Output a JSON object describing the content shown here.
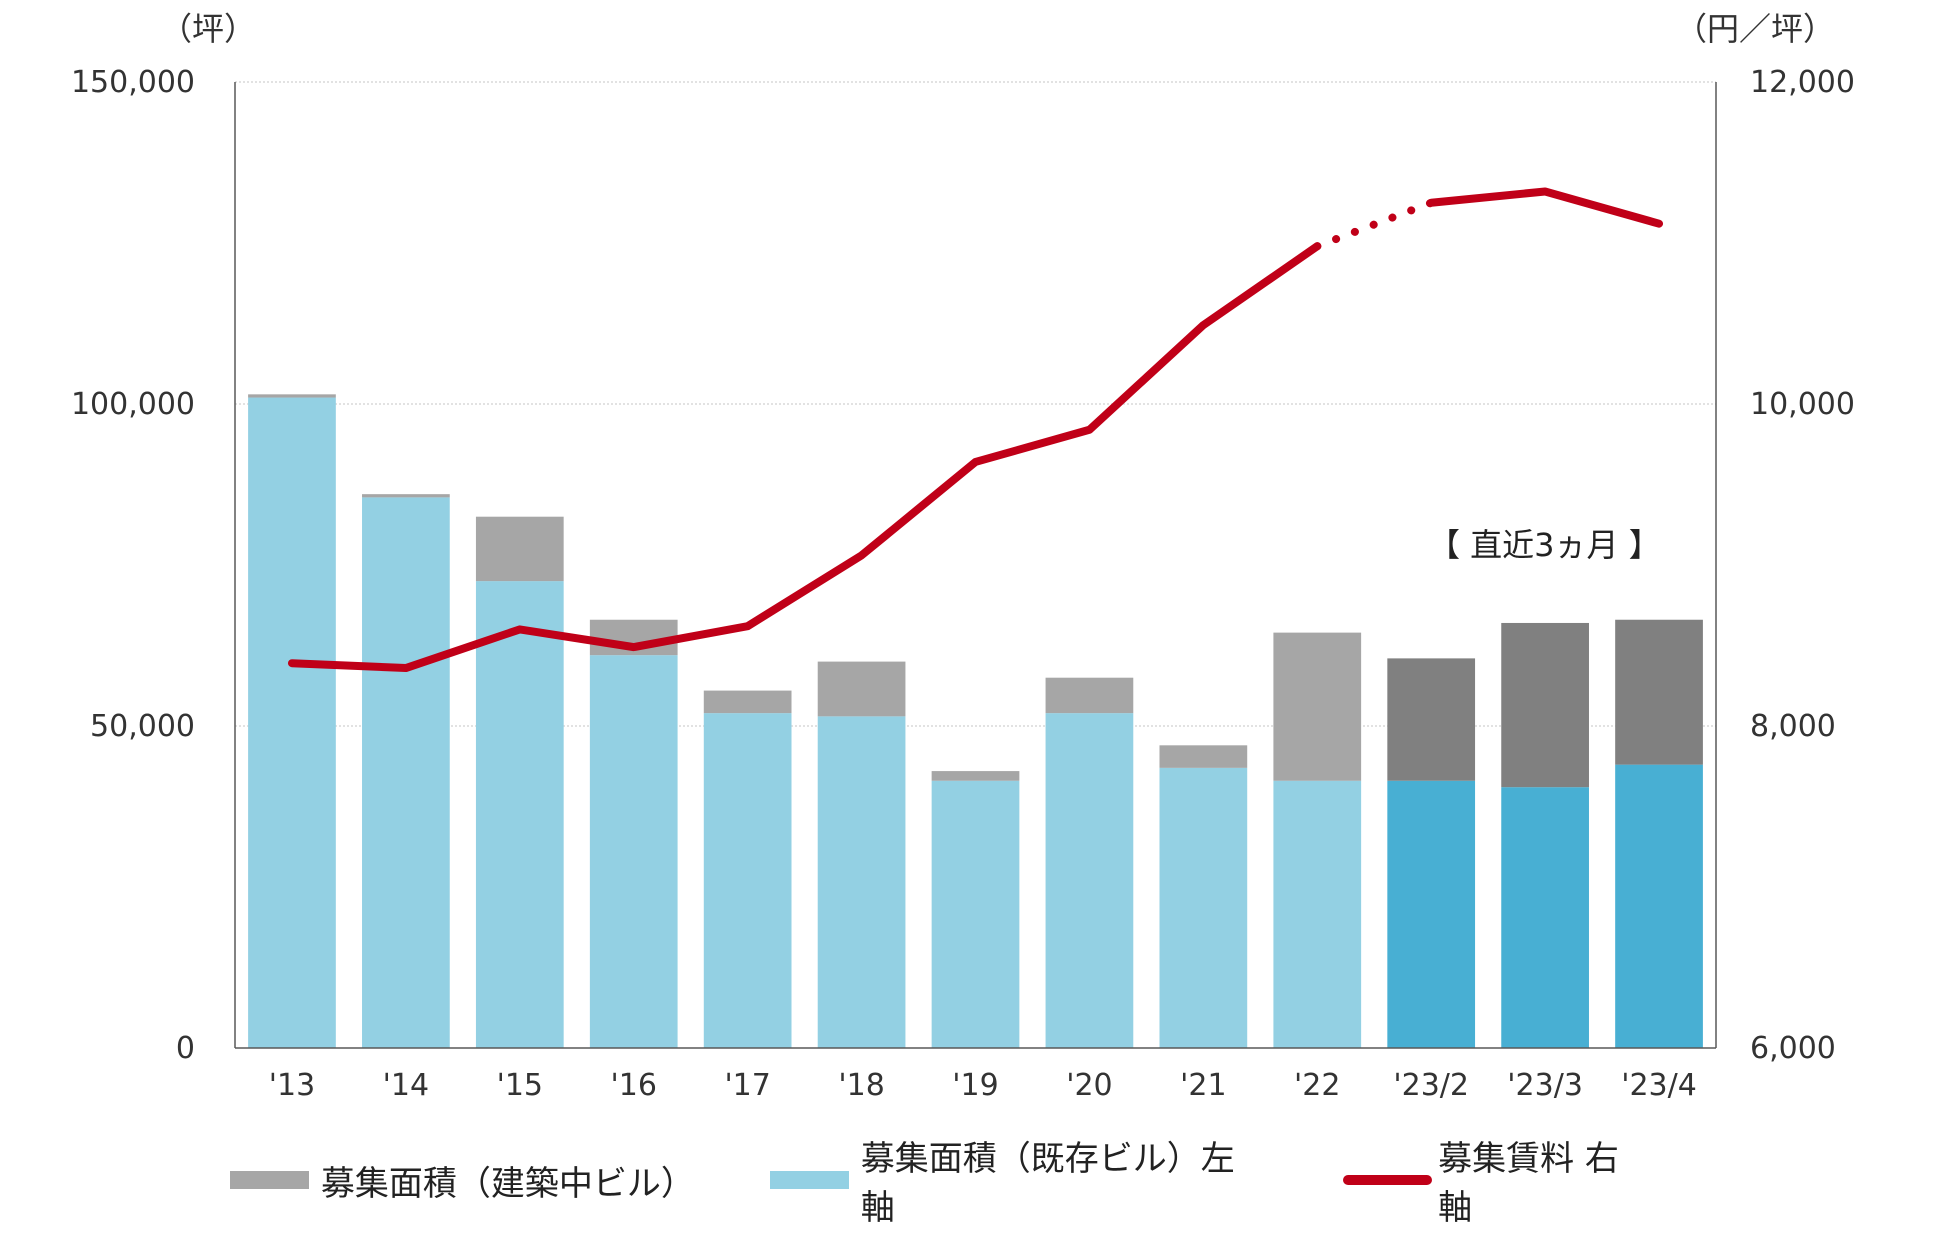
{
  "chart_data": {
    "type": "bar",
    "stacked": true,
    "categories": [
      "'13",
      "'14",
      "'15",
      "'16",
      "'17",
      "'18",
      "'19",
      "'20",
      "'21",
      "'22",
      "'23/2",
      "'23/3",
      "'23/4"
    ],
    "series": [
      {
        "name": "募集面積（既存ビル）左軸",
        "type": "bar",
        "axis": "left",
        "color": "#93D0E3",
        "recent_color": "#48AFD3",
        "values": [
          101000,
          85500,
          72500,
          61000,
          52000,
          51500,
          41500,
          52000,
          43500,
          41500,
          41500,
          40500,
          44000
        ]
      },
      {
        "name": "募集面積（建築中ビル）",
        "type": "bar",
        "axis": "left",
        "color": "#A6A6A6",
        "recent_color": "#808080",
        "values": [
          500,
          500,
          10000,
          5500,
          3500,
          8500,
          1500,
          5500,
          3500,
          23000,
          19000,
          25500,
          22500
        ]
      },
      {
        "name": "募集賃料 右軸",
        "type": "line",
        "axis": "right",
        "color": "#C00018",
        "values": [
          8390,
          8360,
          8600,
          8490,
          8620,
          9060,
          9640,
          9840,
          10490,
          10980,
          11250,
          11320,
          11120
        ],
        "dotted_segment": [
          9,
          10
        ]
      }
    ],
    "y_left": {
      "unit": "（坪）",
      "ylim": [
        0,
        150000
      ],
      "ticks": [
        "0",
        "50,000",
        "100,000",
        "150,000"
      ],
      "tick_values": [
        0,
        50000,
        100000,
        150000
      ]
    },
    "y_right": {
      "unit": "（円／坪）",
      "ylim": [
        6000,
        12000
      ],
      "ticks": [
        "6,000",
        "8,000",
        "10,000",
        "12,000"
      ],
      "tick_values": [
        6000,
        8000,
        10000,
        12000
      ]
    },
    "recent_from_index": 10,
    "annotation": "【 直近3ヵ月 】",
    "grid": true,
    "legend_position": "bottom"
  },
  "legend": {
    "items": [
      {
        "label": "募集面積（建築中ビル）",
        "color": "#A6A6A6"
      },
      {
        "label": "募集面積（既存ビル）左軸",
        "color": "#93D0E3"
      },
      {
        "label": "募集賃料 右軸",
        "color": "#C00018"
      }
    ]
  }
}
